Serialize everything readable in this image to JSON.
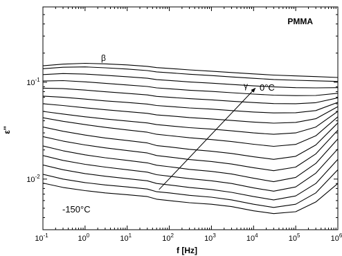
{
  "chart_data": {
    "type": "line",
    "title": "",
    "sample_label": "PMMA",
    "xlabel": "f [Hz]",
    "ylabel": "ε''",
    "x_scale": "log",
    "y_scale": "log",
    "xlim": [
      0.1,
      1000000
    ],
    "ylim": [
      0.003,
      0.6
    ],
    "x_ticks": [
      {
        "value": 0.1,
        "base": "10",
        "exp": "-1"
      },
      {
        "value": 1,
        "base": "10",
        "exp": "0"
      },
      {
        "value": 10,
        "base": "10",
        "exp": "1"
      },
      {
        "value": 100,
        "base": "10",
        "exp": "2"
      },
      {
        "value": 1000,
        "base": "10",
        "exp": "3"
      },
      {
        "value": 10000,
        "base": "10",
        "exp": "4"
      },
      {
        "value": 100000,
        "base": "10",
        "exp": "5"
      },
      {
        "value": 1000000,
        "base": "10",
        "exp": "6"
      }
    ],
    "y_ticks": [
      {
        "value": 0.01,
        "base": "10",
        "exp": "-2"
      },
      {
        "value": 0.1,
        "base": "10",
        "exp": "-1"
      }
    ],
    "grid": false,
    "legend": "none",
    "annotations": {
      "beta": "β",
      "gamma": "γ",
      "t_high": "0°C",
      "t_low": "-150°C"
    },
    "arrow": {
      "from": [
        57,
        0.0078
      ],
      "to": [
        11000,
        0.087
      ]
    },
    "x": [
      0.1,
      0.3,
      1,
      3,
      10,
      30,
      50,
      100,
      300,
      1000,
      3000,
      10000,
      30000,
      100000,
      300000,
      1000000
    ],
    "series": [
      {
        "values": [
          0.0091,
          0.0082,
          0.0076,
          0.0072,
          0.0069,
          0.0066,
          0.0062,
          0.006,
          0.0057,
          0.0055,
          0.0052,
          0.0047,
          0.0044,
          0.0046,
          0.0058,
          0.009
        ]
      },
      {
        "values": [
          0.0112,
          0.01,
          0.0092,
          0.0087,
          0.0083,
          0.0079,
          0.0074,
          0.0072,
          0.0068,
          0.0065,
          0.0061,
          0.0055,
          0.0051,
          0.0055,
          0.0072,
          0.0125
        ]
      },
      {
        "values": [
          0.014,
          0.0125,
          0.0114,
          0.0107,
          0.0101,
          0.0096,
          0.009,
          0.0087,
          0.0082,
          0.0078,
          0.0073,
          0.0066,
          0.0061,
          0.0067,
          0.009,
          0.016
        ]
      },
      {
        "values": [
          0.0175,
          0.0156,
          0.0142,
          0.0133,
          0.0125,
          0.0118,
          0.0111,
          0.0107,
          0.0101,
          0.0096,
          0.009,
          0.0081,
          0.0075,
          0.0083,
          0.0115,
          0.0205
        ]
      },
      {
        "values": [
          0.022,
          0.0196,
          0.0178,
          0.0166,
          0.0156,
          0.0147,
          0.0139,
          0.0134,
          0.0126,
          0.012,
          0.0113,
          0.0102,
          0.0094,
          0.0104,
          0.0145,
          0.026
        ]
      },
      {
        "values": [
          0.0275,
          0.0247,
          0.0225,
          0.021,
          0.0197,
          0.0186,
          0.0175,
          0.0169,
          0.0159,
          0.0152,
          0.0143,
          0.0131,
          0.0122,
          0.0133,
          0.0182,
          0.032
        ]
      },
      {
        "values": [
          0.0345,
          0.0312,
          0.0285,
          0.0266,
          0.025,
          0.0236,
          0.0222,
          0.0215,
          0.0203,
          0.0194,
          0.0184,
          0.017,
          0.016,
          0.0172,
          0.0225,
          0.038
        ]
      },
      {
        "values": [
          0.043,
          0.0395,
          0.0365,
          0.0342,
          0.0322,
          0.0305,
          0.029,
          0.0281,
          0.0267,
          0.0256,
          0.0244,
          0.0229,
          0.0218,
          0.0228,
          0.028,
          0.044
        ]
      },
      {
        "values": [
          0.05,
          0.047,
          0.044,
          0.0418,
          0.0398,
          0.038,
          0.0365,
          0.0355,
          0.034,
          0.0328,
          0.0315,
          0.03,
          0.029,
          0.03,
          0.0345,
          0.05
        ]
      },
      {
        "values": [
          0.06,
          0.0575,
          0.0545,
          0.052,
          0.0498,
          0.0478,
          0.046,
          0.045,
          0.0432,
          0.0418,
          0.0403,
          0.0388,
          0.0378,
          0.0385,
          0.042,
          0.056
        ]
      },
      {
        "values": [
          0.072,
          0.07,
          0.067,
          0.0642,
          0.0618,
          0.0595,
          0.0575,
          0.0563,
          0.0543,
          0.0528,
          0.051,
          0.0493,
          0.0482,
          0.0485,
          0.051,
          0.062
        ]
      },
      {
        "values": [
          0.087,
          0.086,
          0.083,
          0.0798,
          0.0768,
          0.074,
          0.0715,
          0.07,
          0.0677,
          0.0658,
          0.0637,
          0.0617,
          0.0602,
          0.06,
          0.0615,
          0.069
        ]
      },
      {
        "values": [
          0.103,
          0.104,
          0.101,
          0.0975,
          0.0938,
          0.0905,
          0.0875,
          0.0857,
          0.0828,
          0.0805,
          0.078,
          0.0755,
          0.0736,
          0.0728,
          0.073,
          0.077
        ]
      },
      {
        "values": [
          0.12,
          0.123,
          0.1215,
          0.118,
          0.114,
          0.11,
          0.1065,
          0.1043,
          0.1008,
          0.0978,
          0.0948,
          0.0918,
          0.0895,
          0.088,
          0.0875,
          0.088
        ]
      },
      {
        "values": [
          0.138,
          0.143,
          0.144,
          0.141,
          0.137,
          0.132,
          0.128,
          0.1253,
          0.121,
          0.1173,
          0.1135,
          0.1098,
          0.1068,
          0.1048,
          0.1035,
          0.102
        ]
      },
      {
        "values": [
          0.148,
          0.154,
          0.157,
          0.155,
          0.151,
          0.146,
          0.1418,
          0.1389,
          0.1343,
          0.1302,
          0.126,
          0.122,
          0.1187,
          0.1163,
          0.1145,
          0.112
        ]
      }
    ]
  }
}
